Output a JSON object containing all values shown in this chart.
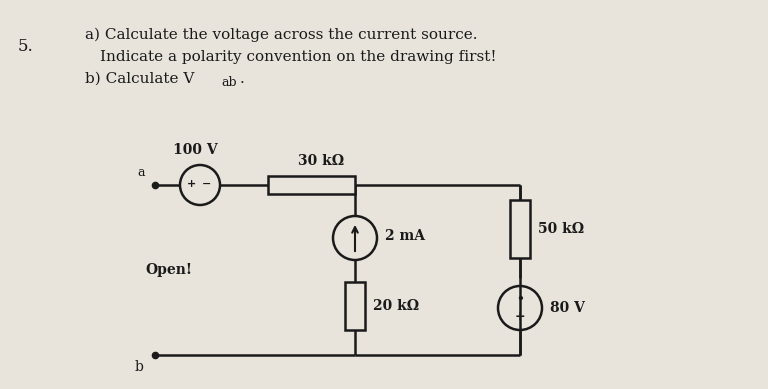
{
  "background_color": "#e8e4dc",
  "circuit_color": "#1a1a1a",
  "label_100V": "100 V",
  "label_30k": "30 kΩ",
  "label_2mA": "2 mA",
  "label_20k": "20 kΩ",
  "label_50k": "50 kΩ",
  "label_80V": "80 V",
  "label_open": "Open!",
  "label_a": "a",
  "label_b": "b",
  "text1": "a) Calculate the voltage across the current source.",
  "text2": "   Indicate a polarity convention on the drawing first!",
  "text3": "b) Calculate V",
  "text3_sub": "ab",
  "text3_dot": ".",
  "number": "5."
}
